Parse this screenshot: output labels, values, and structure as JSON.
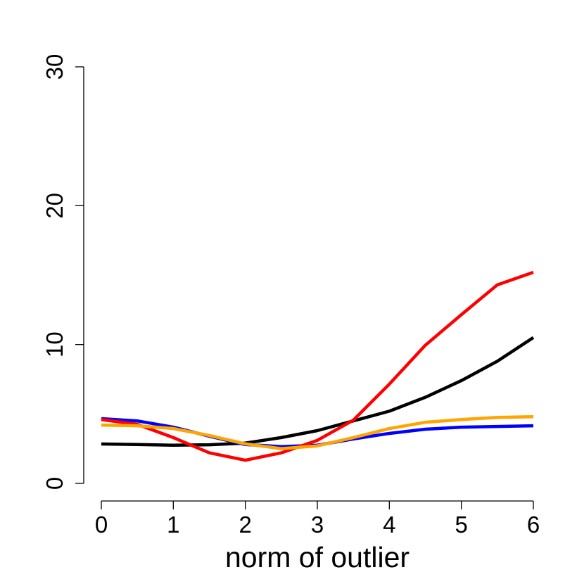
{
  "chart_data": {
    "type": "line",
    "x_label": "norm of outlier",
    "x": [
      0,
      0.5,
      1,
      1.5,
      2,
      2.5,
      3,
      3.5,
      4,
      4.5,
      5,
      5.5,
      6
    ],
    "series": [
      {
        "color": "#000000",
        "values": [
          2.84,
          2.8,
          2.75,
          2.78,
          2.9,
          3.3,
          3.8,
          4.5,
          5.2,
          6.2,
          7.4,
          8.8,
          10.5
        ]
      },
      {
        "color": "#0000ff",
        "values": [
          4.66,
          4.5,
          4.05,
          3.4,
          2.8,
          2.65,
          2.75,
          3.2,
          3.6,
          3.9,
          4.05,
          4.1,
          4.15
        ]
      },
      {
        "color": "#ff0000",
        "values": [
          4.6,
          4.25,
          3.3,
          2.2,
          1.67,
          2.2,
          3.1,
          4.55,
          7.15,
          9.95,
          12.15,
          14.3,
          15.2
        ]
      },
      {
        "color": "#ffa500",
        "values": [
          4.2,
          4.15,
          3.95,
          3.45,
          2.85,
          2.5,
          2.7,
          3.3,
          3.95,
          4.4,
          4.6,
          4.75,
          4.8
        ]
      }
    ],
    "xlim": [
      0,
      6
    ],
    "ylim": [
      0,
      30
    ],
    "xticks": [
      0,
      1,
      2,
      3,
      4,
      5,
      6
    ],
    "yticks": [
      0,
      10,
      20,
      30
    ]
  }
}
